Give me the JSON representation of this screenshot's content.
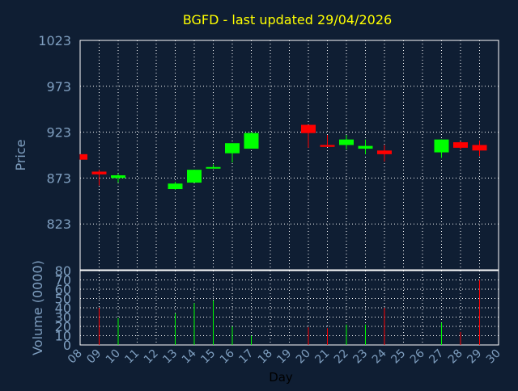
{
  "chart_data": {
    "type": "candlestick",
    "title": "BGFD - last updated 29/04/2026",
    "xlabel": "Day",
    "price_panel": {
      "ylabel": "Price",
      "ylim": [
        773,
        1023
      ],
      "yticks": [
        1023,
        973,
        923,
        873,
        823
      ],
      "grid": true
    },
    "volume_panel": {
      "ylabel": "Volume (0000)",
      "ylim": [
        0,
        80
      ],
      "yticks": [
        80,
        70,
        60,
        50,
        40,
        30,
        20,
        10,
        0
      ],
      "grid": true
    },
    "x_ticks": [
      "08",
      "09",
      "10",
      "11",
      "12",
      "13",
      "14",
      "15",
      "16",
      "17",
      "18",
      "19",
      "20",
      "21",
      "22",
      "23",
      "24",
      "25",
      "26",
      "27",
      "28",
      "29",
      "30"
    ],
    "colors": {
      "background": "#0f1e33",
      "title": "#ffff00",
      "axis_text": "#7f9fc0",
      "up": "#00ff00",
      "down": "#ff0000",
      "grid": "#ffffff"
    },
    "candles": [
      {
        "day": 8,
        "open": 899,
        "close": 893,
        "high": 899,
        "low": 893,
        "volume": 0
      },
      {
        "day": 9,
        "open": 880,
        "close": 877,
        "high": 882,
        "low": 865,
        "volume": 40
      },
      {
        "day": 10,
        "open": 873,
        "close": 876,
        "high": 878,
        "low": 868,
        "volume": 29
      },
      {
        "day": 13,
        "open": 861,
        "close": 867,
        "high": 869,
        "low": 860,
        "volume": 34
      },
      {
        "day": 14,
        "open": 868,
        "close": 882,
        "high": 882,
        "low": 868,
        "volume": 45
      },
      {
        "day": 15,
        "open": 885,
        "close": 885,
        "high": 888,
        "low": 885,
        "volume": 48
      },
      {
        "day": 16,
        "open": 900,
        "close": 911,
        "high": 911,
        "low": 890,
        "volume": 20
      },
      {
        "day": 17,
        "open": 905,
        "close": 922,
        "high": 923,
        "low": 905,
        "volume": 10
      },
      {
        "day": 20,
        "open": 931,
        "close": 922,
        "high": 931,
        "low": 906,
        "volume": 19
      },
      {
        "day": 21,
        "open": 909,
        "close": 907,
        "high": 920,
        "low": 907,
        "volume": 18
      },
      {
        "day": 22,
        "open": 909,
        "close": 915,
        "high": 920,
        "low": 904,
        "volume": 22
      },
      {
        "day": 23,
        "open": 905,
        "close": 908,
        "high": 915,
        "low": 899,
        "volume": 22
      },
      {
        "day": 24,
        "open": 903,
        "close": 899,
        "high": 909,
        "low": 891,
        "volume": 40
      },
      {
        "day": 27,
        "open": 901,
        "close": 915,
        "high": 915,
        "low": 895,
        "volume": 24
      },
      {
        "day": 28,
        "open": 912,
        "close": 906,
        "high": 913,
        "low": 904,
        "volume": 14
      },
      {
        "day": 29,
        "open": 909,
        "close": 903,
        "high": 914,
        "low": 897,
        "volume": 70
      }
    ]
  }
}
